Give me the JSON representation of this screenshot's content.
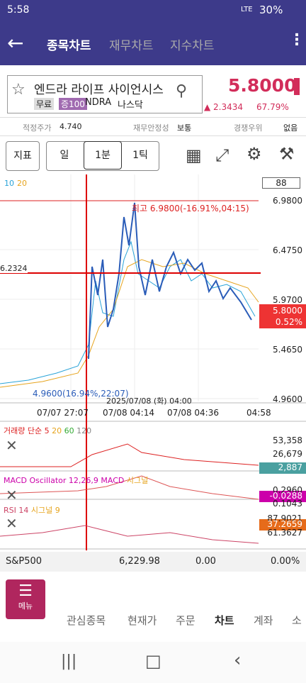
{
  "status": {
    "time": "5:58",
    "network": "LTE",
    "battery": "30%"
  },
  "header": {
    "tabs": [
      "종목차트",
      "재무차트",
      "지수차트"
    ]
  },
  "stock": {
    "name": "엔드라 라이프 사이언시스",
    "tags": [
      "무료",
      "증100"
    ],
    "ticker": "NDRA",
    "market": "나스닥",
    "price": "5.8000",
    "change": "▲ 2.3434",
    "change_pct": "67.79%"
  },
  "info": {
    "fair_label": "적정주가",
    "fair_value": "4.740",
    "stability_label": "재무안정성",
    "stability_value": "보통",
    "edge_label": "경쟁우위",
    "edge_value": "없음"
  },
  "toolbar": {
    "indicator": "지표",
    "period": "일",
    "minute": "1분",
    "tick": "1틱"
  },
  "chart": {
    "ma_10": "10",
    "ma_20": "20",
    "count": "88",
    "price_ticks": [
      "6.9800",
      "6.4750",
      "5.9700",
      "5.4650",
      "4.9600"
    ],
    "high_label": "최고 6.9800(-16.91%,04:15)",
    "low_label": "4.9600(16.94%,22:07)",
    "cross_price": "6.2324",
    "cross_time": "2025/07/08 (화) 04:00",
    "last_price": "5.8000",
    "last_pct": "0.52%",
    "time_ticks": [
      "07/07 27:07",
      "07/08 04:14",
      "07/08 04:36",
      "04:58"
    ]
  },
  "volume": {
    "title": "거래량 단순",
    "ma": [
      "5",
      "20",
      "60",
      "120"
    ],
    "ticks": [
      "53,358",
      "26,679"
    ],
    "last": "2,887"
  },
  "macd": {
    "title": "MACD Oscillator 12,26,9",
    "macd": "MACD",
    "signal": "시그널",
    "ticks": [
      "0.2960",
      "0.1043"
    ],
    "last": "-0.0288"
  },
  "rsi": {
    "title": "RSI 14",
    "signal": "시그널 9",
    "ticks": [
      "87.9021",
      "61.3627"
    ],
    "last": "37.2659"
  },
  "ticker_row": {
    "name": "S&P500",
    "value": "6,229.98",
    "change": "0.00",
    "pct": "0.00%"
  },
  "bottom_nav": {
    "menu": "메뉴",
    "items": [
      "관심종목",
      "현재가",
      "주문",
      "차트",
      "계좌",
      "소"
    ]
  }
}
